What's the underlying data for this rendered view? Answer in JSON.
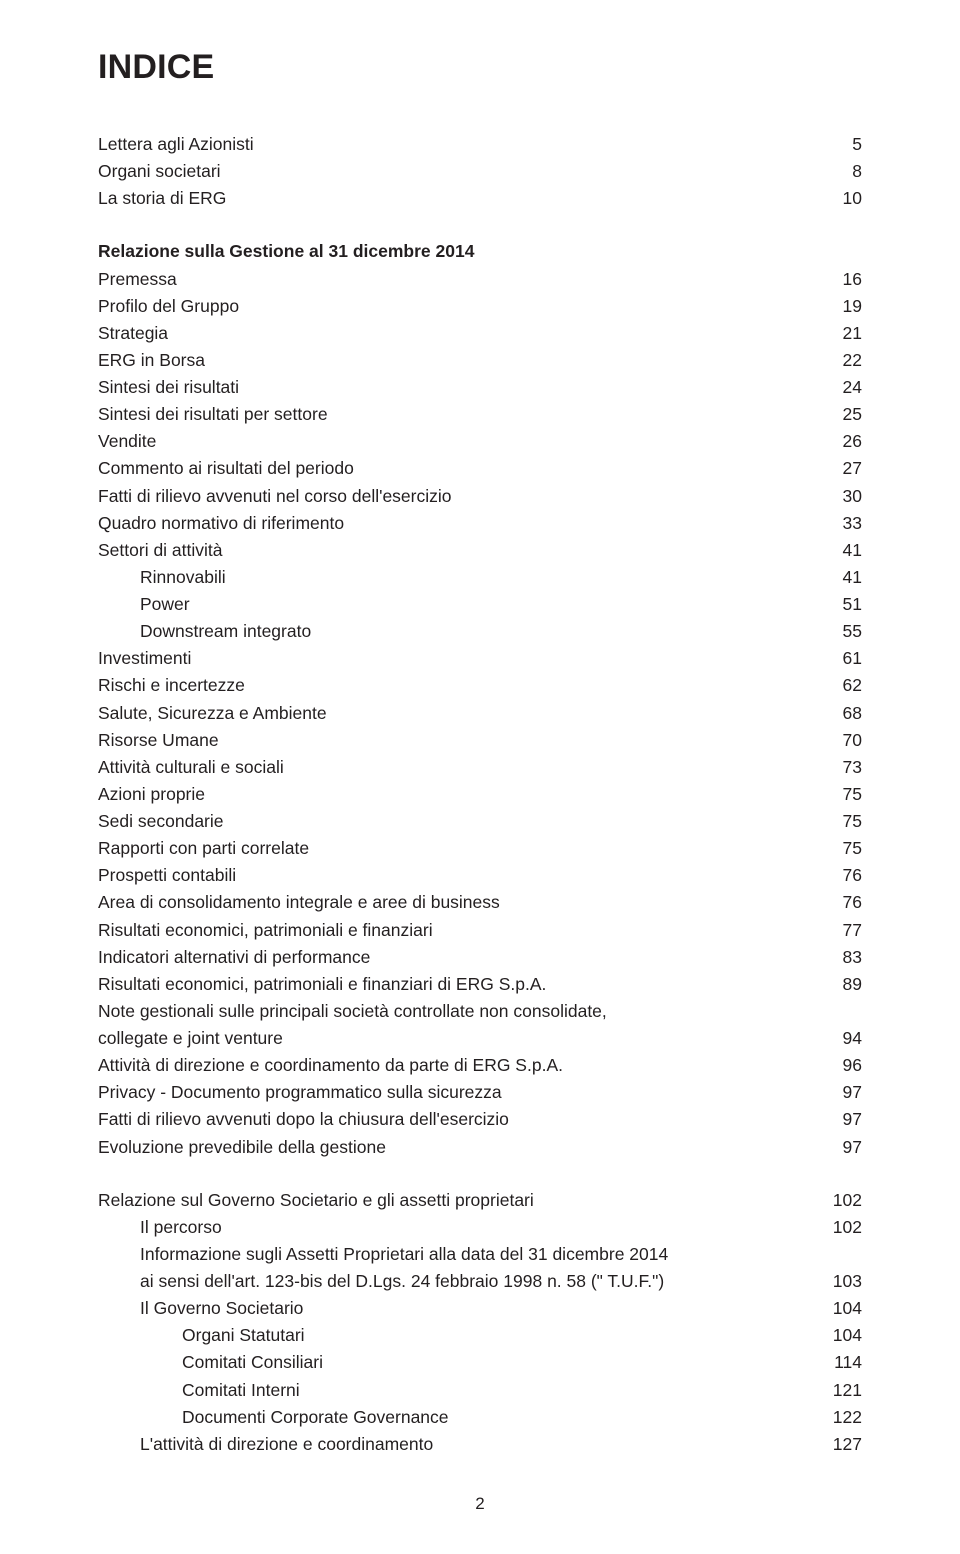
{
  "title": "INDICE",
  "rows": [
    {
      "label": "Lettera agli Azionisti",
      "page": "5",
      "indent": 0,
      "bold": false
    },
    {
      "label": "Organi societari",
      "page": "8",
      "indent": 0,
      "bold": false
    },
    {
      "label": "La storia di ERG",
      "page": "10",
      "indent": 0,
      "bold": false
    },
    {
      "gap": "section"
    },
    {
      "label": "Relazione sulla Gestione al 31 dicembre 2014",
      "page": "",
      "indent": 0,
      "bold": true
    },
    {
      "label": "Premessa",
      "page": "16",
      "indent": 0,
      "bold": false
    },
    {
      "label": "Profilo del Gruppo",
      "page": "19",
      "indent": 0,
      "bold": false
    },
    {
      "label": "Strategia",
      "page": "21",
      "indent": 0,
      "bold": false
    },
    {
      "label": "ERG in Borsa",
      "page": "22",
      "indent": 0,
      "bold": false
    },
    {
      "label": "Sintesi dei risultati",
      "page": "24",
      "indent": 0,
      "bold": false
    },
    {
      "label": "Sintesi dei risultati per settore",
      "page": "25",
      "indent": 0,
      "bold": false
    },
    {
      "label": "Vendite",
      "page": "26",
      "indent": 0,
      "bold": false
    },
    {
      "label": "Commento ai risultati del periodo",
      "page": "27",
      "indent": 0,
      "bold": false
    },
    {
      "label": "Fatti di rilievo avvenuti nel corso dell'esercizio",
      "page": "30",
      "indent": 0,
      "bold": false
    },
    {
      "label": "Quadro normativo di riferimento",
      "page": "33",
      "indent": 0,
      "bold": false
    },
    {
      "label": "Settori di attività",
      "page": "41",
      "indent": 0,
      "bold": false
    },
    {
      "label": "Rinnovabili",
      "page": "41",
      "indent": 1,
      "bold": false
    },
    {
      "label": "Power",
      "page": "51",
      "indent": 1,
      "bold": false
    },
    {
      "label": "Downstream integrato",
      "page": "55",
      "indent": 1,
      "bold": false
    },
    {
      "label": "Investimenti",
      "page": "61",
      "indent": 0,
      "bold": false
    },
    {
      "label": "Rischi e incertezze",
      "page": "62",
      "indent": 0,
      "bold": false
    },
    {
      "label": "Salute, Sicurezza e Ambiente",
      "page": "68",
      "indent": 0,
      "bold": false
    },
    {
      "label": "Risorse Umane",
      "page": "70",
      "indent": 0,
      "bold": false
    },
    {
      "label": "Attività culturali e sociali",
      "page": "73",
      "indent": 0,
      "bold": false
    },
    {
      "label": "Azioni proprie",
      "page": "75",
      "indent": 0,
      "bold": false
    },
    {
      "label": "Sedi secondarie",
      "page": "75",
      "indent": 0,
      "bold": false
    },
    {
      "label": "Rapporti con parti correlate",
      "page": "75",
      "indent": 0,
      "bold": false
    },
    {
      "label": "Prospetti contabili",
      "page": "76",
      "indent": 0,
      "bold": false
    },
    {
      "label": "Area di consolidamento integrale e aree di business",
      "page": "76",
      "indent": 0,
      "bold": false
    },
    {
      "label": "Risultati economici, patrimoniali e finanziari",
      "page": "77",
      "indent": 0,
      "bold": false
    },
    {
      "label": "Indicatori alternativi di performance",
      "page": "83",
      "indent": 0,
      "bold": false
    },
    {
      "label": "Risultati economici, patrimoniali e finanziari di ERG S.p.A.",
      "page": "89",
      "indent": 0,
      "bold": false
    },
    {
      "label": "Note gestionali sulle principali società controllate non consolidate,",
      "page": "",
      "indent": 0,
      "bold": false
    },
    {
      "label": "collegate e joint venture",
      "page": "94",
      "indent": 0,
      "bold": false
    },
    {
      "label": "Attività di direzione e coordinamento da parte di ERG S.p.A.",
      "page": "96",
      "indent": 0,
      "bold": false
    },
    {
      "label": "Privacy - Documento programmatico sulla sicurezza",
      "page": "97",
      "indent": 0,
      "bold": false
    },
    {
      "label": "Fatti di rilievo avvenuti dopo la chiusura dell'esercizio",
      "page": "97",
      "indent": 0,
      "bold": false
    },
    {
      "label": "Evoluzione prevedibile della gestione",
      "page": "97",
      "indent": 0,
      "bold": false
    },
    {
      "gap": "section"
    },
    {
      "label": "Relazione sul Governo Societario e gli assetti proprietari",
      "page": "102",
      "indent": 0,
      "bold": false
    },
    {
      "label": "Il percorso",
      "page": "102",
      "indent": 1,
      "bold": false
    },
    {
      "label": "Informazione sugli Assetti Proprietari alla data del 31 dicembre 2014",
      "page": "",
      "indent": 1,
      "bold": false
    },
    {
      "label": "ai sensi dell'art. 123-bis del D.Lgs. 24 febbraio 1998 n. 58 (\" T.U.F.\")",
      "page": "103",
      "indent": 1,
      "bold": false
    },
    {
      "label": "Il Governo Societario",
      "page": "104",
      "indent": 1,
      "bold": false
    },
    {
      "label": "Organi Statutari",
      "page": "104",
      "indent": 2,
      "bold": false
    },
    {
      "label": "Comitati Consiliari",
      "page": "114",
      "indent": 2,
      "bold": false
    },
    {
      "label": "Comitati Interni",
      "page": "121",
      "indent": 2,
      "bold": false
    },
    {
      "label": "Documenti Corporate Governance",
      "page": "122",
      "indent": 2,
      "bold": false
    },
    {
      "label": "L'attività di direzione e coordinamento",
      "page": "127",
      "indent": 1,
      "bold": false
    }
  ],
  "footer_page_number": "2"
}
